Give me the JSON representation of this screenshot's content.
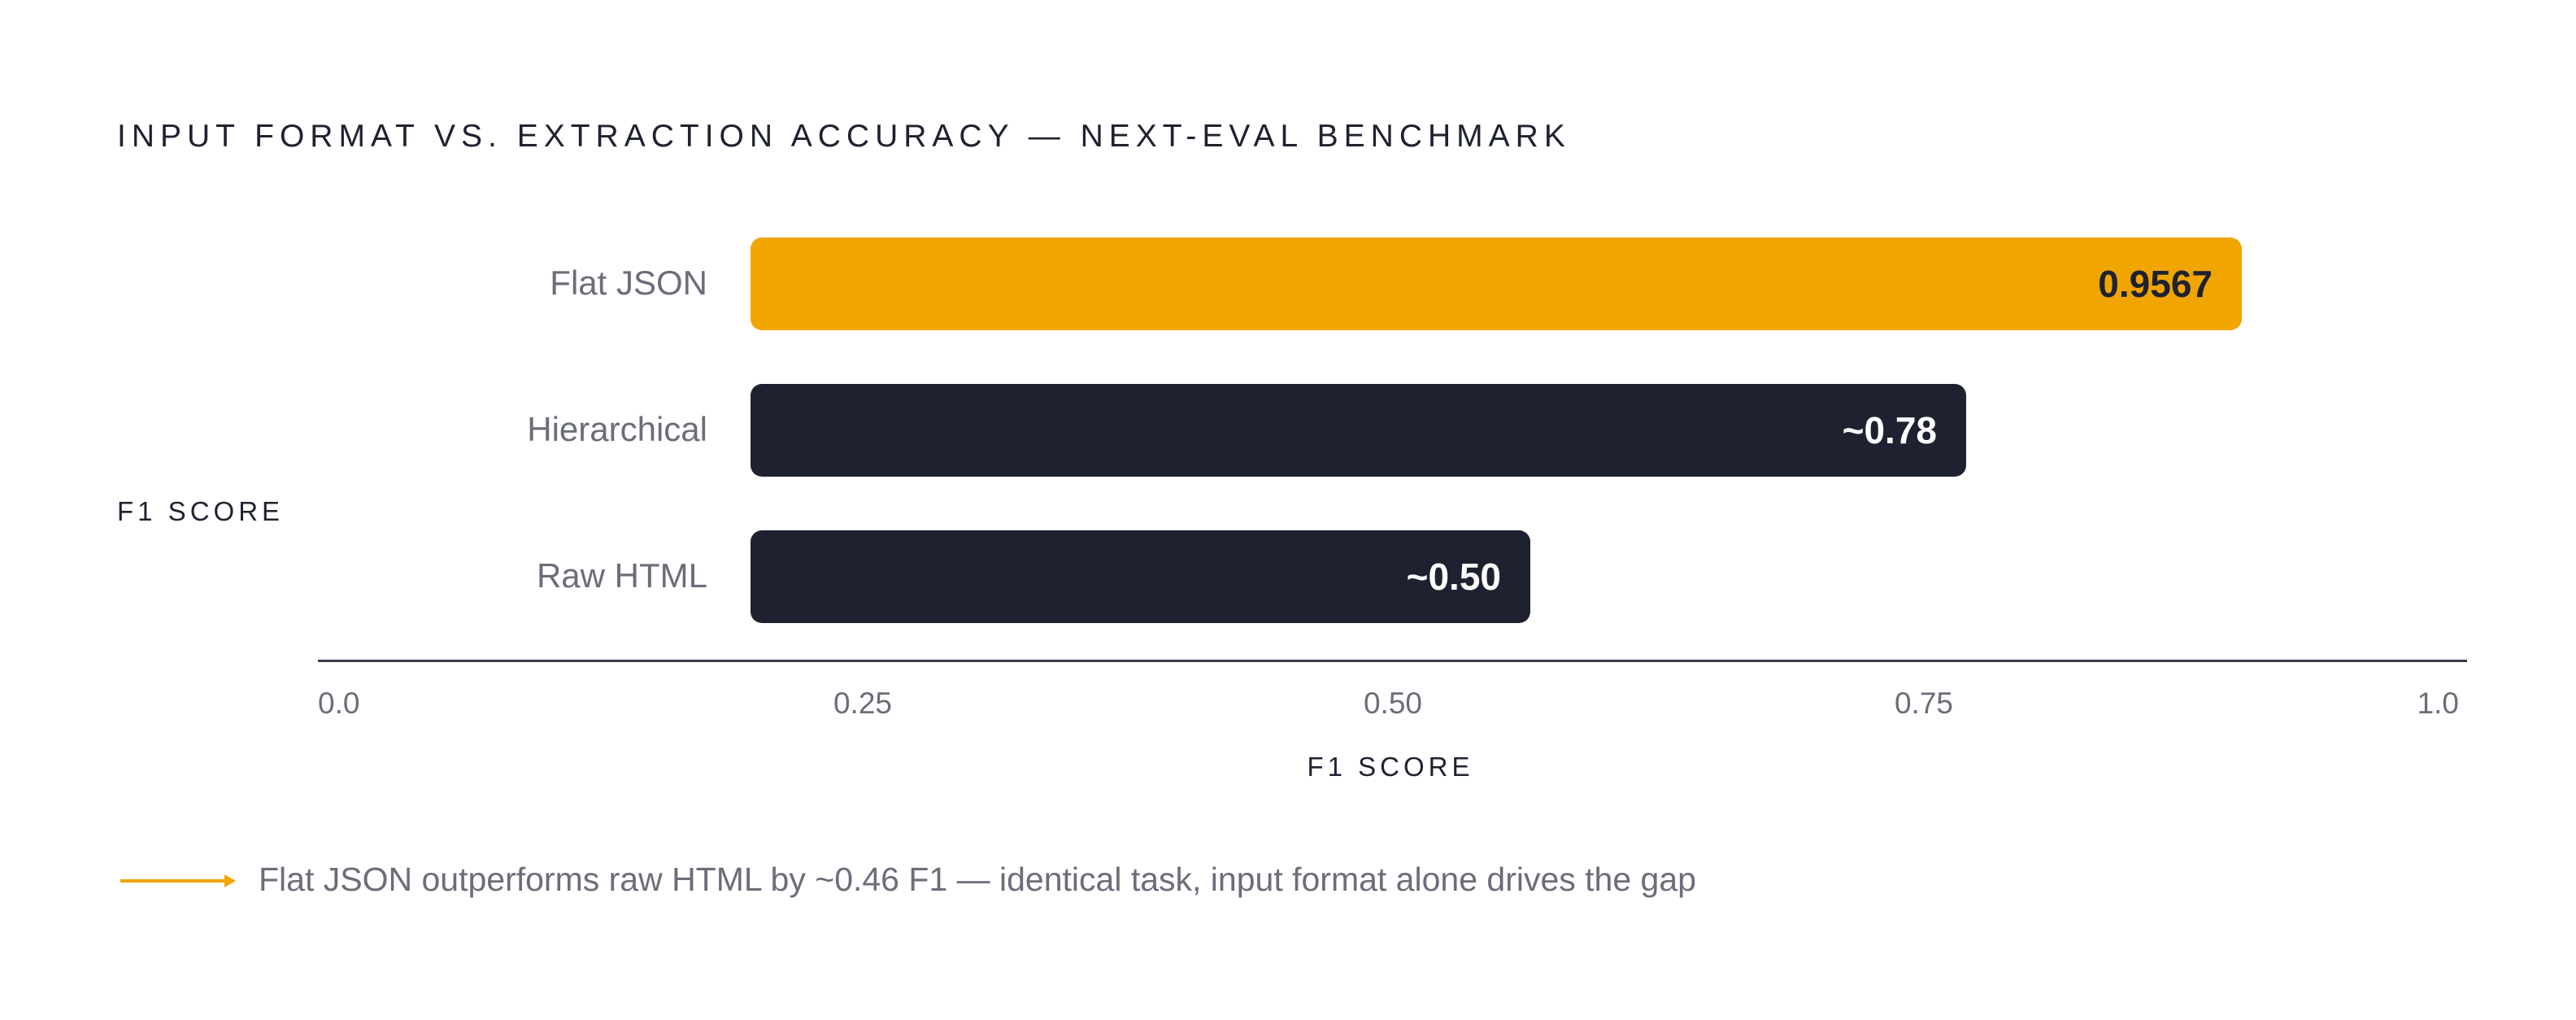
{
  "chart_data": {
    "type": "bar",
    "orientation": "horizontal",
    "title": "INPUT FORMAT VS. EXTRACTION ACCURACY — NEXT-EVAL BENCHMARK",
    "ylabel": "F1 SCORE",
    "xlabel": "F1 SCORE",
    "categories": [
      "Flat JSON",
      "Hierarchical",
      "Raw HTML"
    ],
    "values": [
      0.9567,
      0.78,
      0.5
    ],
    "value_labels": [
      "0.9567",
      "~0.78",
      "~0.50"
    ],
    "bar_colors": [
      "#f0a500",
      "#1e2230",
      "#1e2230"
    ],
    "value_label_colors": [
      "#1e2230",
      "#ffffff",
      "#ffffff"
    ],
    "xticks": [
      "0.0",
      "0.25",
      "0.50",
      "0.75",
      "1.0"
    ],
    "grid": false,
    "annotation": "Flat JSON outperforms raw HTML by ~0.46 F1 — identical task, input format alone drives the gap"
  },
  "colors": {
    "accent": "#f0a500",
    "dark": "#1e2230"
  }
}
